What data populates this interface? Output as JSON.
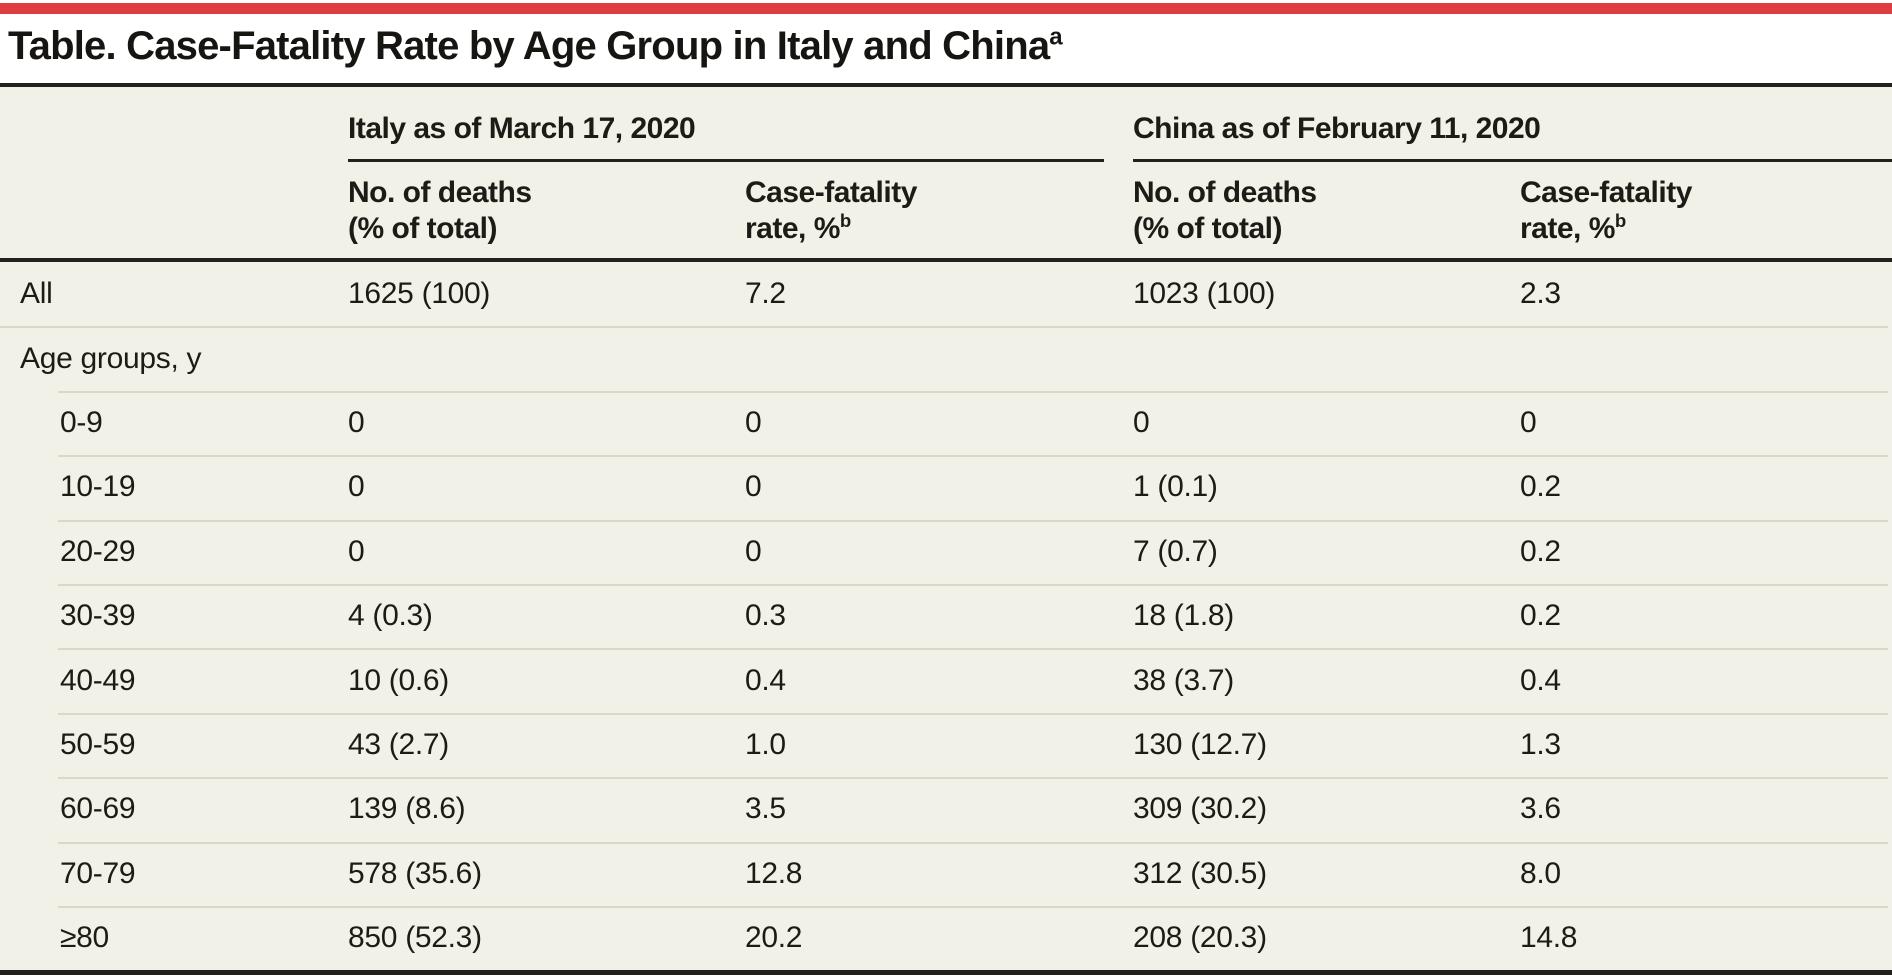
{
  "colors": {
    "accent_red": "#df3b43",
    "background_cream": "#f2f1e8",
    "rule_dark": "#23211d",
    "divider_line": "#dad8c9"
  },
  "title": {
    "text": "Table. Case-Fatality Rate by Age Group in Italy and China",
    "footnote_marker": "a"
  },
  "table": {
    "column_groups": [
      {
        "label": "Italy as of March 17, 2020"
      },
      {
        "label": "China as of February 11, 2020"
      }
    ],
    "columns": [
      {
        "line1": "No. of deaths",
        "line2": "(% of total)",
        "sup": ""
      },
      {
        "line1": "Case-fatality",
        "line2": "rate, %",
        "sup": "b"
      },
      {
        "line1": "No. of deaths",
        "line2": "(% of total)",
        "sup": ""
      },
      {
        "line1": "Case-fatality",
        "line2": "rate, %",
        "sup": "b"
      }
    ],
    "rows": [
      {
        "cells": [
          "All",
          "1625 (100)",
          "7.2",
          "1023 (100)",
          "2.3"
        ],
        "indent": false,
        "divider": "none"
      },
      {
        "cells": [
          "Age groups, y",
          "",
          "",
          "",
          ""
        ],
        "indent": false,
        "divider": "full"
      },
      {
        "cells": [
          "0-9",
          "0",
          "0",
          "0",
          "0"
        ],
        "indent": true,
        "divider": "inset"
      },
      {
        "cells": [
          "10-19",
          "0",
          "0",
          "1 (0.1)",
          "0.2"
        ],
        "indent": true,
        "divider": "inset"
      },
      {
        "cells": [
          "20-29",
          "0",
          "0",
          "7 (0.7)",
          "0.2"
        ],
        "indent": true,
        "divider": "inset"
      },
      {
        "cells": [
          "30-39",
          "4 (0.3)",
          "0.3",
          "18 (1.8)",
          "0.2"
        ],
        "indent": true,
        "divider": "inset"
      },
      {
        "cells": [
          "40-49",
          "10 (0.6)",
          "0.4",
          "38 (3.7)",
          "0.4"
        ],
        "indent": true,
        "divider": "inset"
      },
      {
        "cells": [
          "50-59",
          "43 (2.7)",
          "1.0",
          "130 (12.7)",
          "1.3"
        ],
        "indent": true,
        "divider": "inset"
      },
      {
        "cells": [
          "60-69",
          "139 (8.6)",
          "3.5",
          "309 (30.2)",
          "3.6"
        ],
        "indent": true,
        "divider": "inset"
      },
      {
        "cells": [
          "70-79",
          "578 (35.6)",
          "12.8",
          "312 (30.5)",
          "8.0"
        ],
        "indent": true,
        "divider": "inset"
      },
      {
        "cells": [
          "≥80",
          "850 (52.3)",
          "20.2",
          "208 (20.3)",
          "14.8"
        ],
        "indent": true,
        "divider": "inset"
      }
    ]
  }
}
